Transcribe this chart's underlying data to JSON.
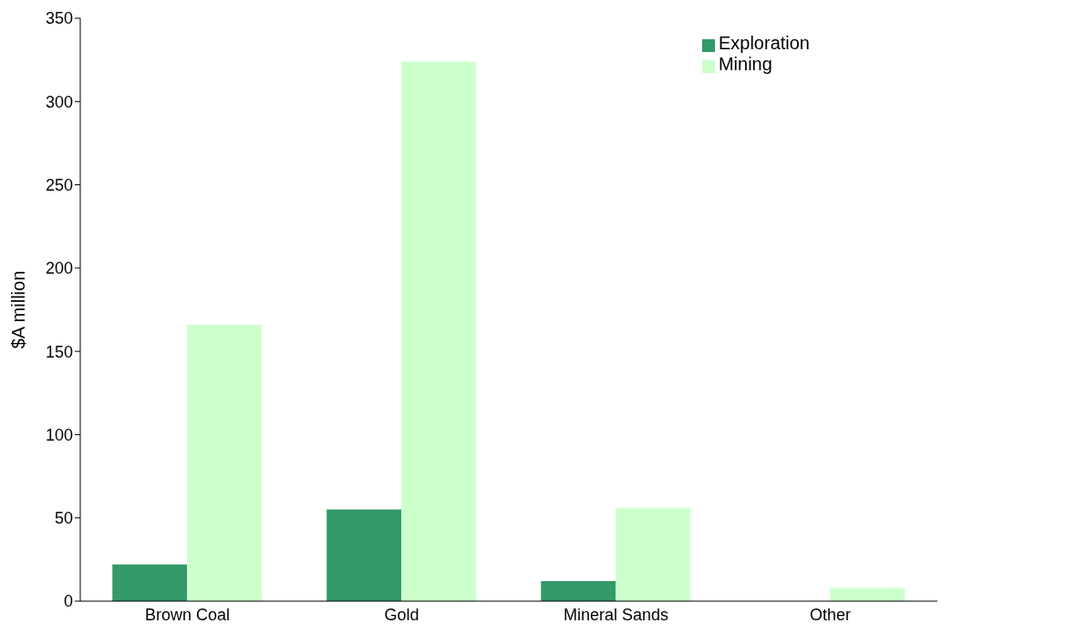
{
  "chart_data": {
    "type": "bar",
    "ylabel": "$A million",
    "categories": [
      "Brown Coal",
      "Gold",
      "Mineral Sands",
      "Other"
    ],
    "series": [
      {
        "name": "Exploration",
        "color": "#339966",
        "values": [
          22,
          55,
          12,
          0
        ]
      },
      {
        "name": "Mining",
        "color": "#ccffcc",
        "values": [
          166,
          324,
          56,
          8
        ]
      }
    ],
    "ylim": [
      0,
      350
    ],
    "yticks": [
      0,
      50,
      100,
      150,
      200,
      250,
      300,
      350
    ],
    "grid": false,
    "legend": "top right"
  }
}
